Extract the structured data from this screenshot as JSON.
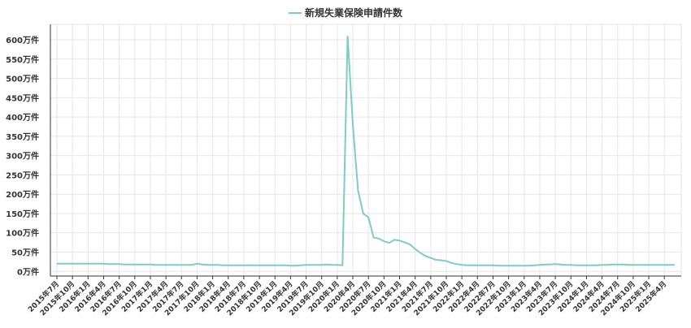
{
  "chart_data": {
    "type": "line",
    "series": [
      {
        "name": "新規失業保険申請件数",
        "color": "#7ecdc4",
        "values": [
          20,
          20,
          20,
          20,
          20,
          20,
          20,
          20,
          20,
          20,
          19,
          19,
          19,
          18,
          18,
          18,
          18,
          18,
          18,
          17,
          17,
          17,
          17,
          17,
          17,
          17,
          17,
          20,
          18,
          17,
          17,
          17,
          16,
          16,
          16,
          16,
          16,
          16,
          16,
          16,
          16,
          16,
          16,
          16,
          16,
          15,
          15,
          16,
          17,
          17,
          17,
          17,
          18,
          17,
          17,
          16,
          610,
          380,
          210,
          150,
          140,
          88,
          85,
          78,
          74,
          82,
          80,
          75,
          70,
          58,
          48,
          40,
          35,
          30,
          29,
          27,
          22,
          19,
          17,
          16,
          16,
          16,
          16,
          16,
          16,
          15,
          15,
          15,
          15,
          15,
          15,
          15,
          16,
          17,
          18,
          18,
          19,
          18,
          17,
          17,
          16,
          16,
          16,
          16,
          16,
          17,
          17,
          18,
          18,
          18,
          17,
          17,
          17,
          17,
          17,
          17,
          17,
          17,
          17,
          17
        ]
      }
    ],
    "categories": [
      "2015年7月",
      null,
      null,
      "2015年10月",
      null,
      null,
      "2016年1月",
      null,
      null,
      "2016年4月",
      null,
      null,
      "2016年7月",
      null,
      null,
      "2016年10月",
      null,
      null,
      "2017年1月",
      null,
      null,
      "2017年4月",
      null,
      null,
      "2017年7月",
      null,
      null,
      "2017年10月",
      null,
      null,
      "2018年1月",
      null,
      null,
      "2018年4月",
      null,
      null,
      "2018年7月",
      null,
      null,
      "2018年10月",
      null,
      null,
      "2019年1月",
      null,
      null,
      "2019年4月",
      null,
      null,
      "2019年7月",
      null,
      null,
      "2019年10月",
      null,
      null,
      "2020年1月",
      null,
      null,
      "2020年4月",
      null,
      null,
      "2020年7月",
      null,
      null,
      "2020年10月",
      null,
      null,
      "2021年1月",
      null,
      null,
      "2021年4月",
      null,
      null,
      "2021年7月",
      null,
      null,
      "2021年10月",
      null,
      null,
      "2022年1月",
      null,
      null,
      "2022年4月",
      null,
      null,
      "2022年7月",
      null,
      null,
      "2022年10月",
      null,
      null,
      "2023年1月",
      null,
      null,
      "2023年4月",
      null,
      null,
      "2023年7月",
      null,
      null,
      "2023年10月",
      null,
      null,
      "2024年1月",
      null,
      null,
      "2024年4月",
      null,
      null,
      "2024年7月",
      null,
      null,
      "2024年10月",
      null,
      null,
      "2025年1月",
      null,
      null,
      "2025年4月",
      null,
      null
    ],
    "ylim": [
      -12,
      640
    ],
    "yticks": [
      {
        "value": 0,
        "label": "0万件"
      },
      {
        "value": 50,
        "label": "50万件"
      },
      {
        "value": 100,
        "label": "100万件"
      },
      {
        "value": 150,
        "label": "150万件"
      },
      {
        "value": 200,
        "label": "200万件"
      },
      {
        "value": 250,
        "label": "250万件"
      },
      {
        "value": 300,
        "label": "300万件"
      },
      {
        "value": 350,
        "label": "350万件"
      },
      {
        "value": 400,
        "label": "400万件"
      },
      {
        "value": 450,
        "label": "450万件"
      },
      {
        "value": 500,
        "label": "500万件"
      },
      {
        "value": 550,
        "label": "550万件"
      },
      {
        "value": 600,
        "label": "600万件"
      }
    ],
    "grid": true,
    "legend": "top"
  }
}
